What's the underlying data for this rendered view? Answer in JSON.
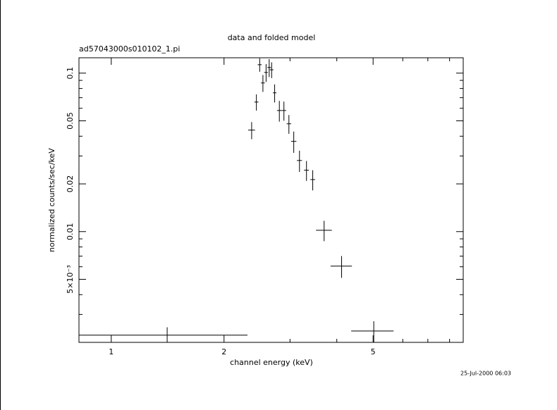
{
  "chart_data": {
    "type": "errorbar",
    "title": "data and folded model",
    "subtitle": "ad57043000s010102_1.pi",
    "x_label": "channel energy (keV)",
    "y_label": "normalized counts/sec/keV",
    "timestamp": "25-Jul-2000 06:03",
    "x_log": true,
    "y_log": true,
    "color": "#000000",
    "xlim": [
      0.82,
      8.7
    ],
    "ylim": [
      0.002,
      0.125
    ],
    "xticks": [
      1,
      2,
      5
    ],
    "xminorticks": [
      3,
      4,
      6,
      7,
      8
    ],
    "yticks": [
      {
        "value": 0.005,
        "label": "5×10⁻³"
      },
      0.01,
      0.02,
      0.05,
      0.1
    ],
    "yminorticks": [
      0.003,
      0.004,
      0.006,
      0.007,
      0.008,
      0.009,
      0.03,
      0.04,
      0.06,
      0.07,
      0.08,
      0.09
    ],
    "x": [
      1.41,
      2.37,
      2.44,
      2.49,
      2.54,
      2.59,
      2.64,
      2.68,
      2.73,
      2.81,
      2.89,
      2.98,
      3.07,
      3.18,
      3.32,
      3.45,
      3.7,
      4.12,
      5.02
    ],
    "xerr": [
      0.9,
      0.05,
      0.03,
      0.03,
      0.03,
      0.03,
      0.03,
      0.03,
      0.03,
      0.04,
      0.04,
      0.04,
      0.05,
      0.05,
      0.05,
      0.05,
      0.18,
      0.27,
      0.65
    ],
    "y": [
      0.00222,
      0.0437,
      0.0657,
      0.113,
      0.0867,
      0.101,
      0.1085,
      0.105,
      0.0751,
      0.0581,
      0.0581,
      0.0479,
      0.0371,
      0.0281,
      0.0244,
      0.0213,
      0.0102,
      0.00606,
      0.00236
    ],
    "yerr": [
      0.00027,
      0.0054,
      0.0077,
      0.011,
      0.0106,
      0.013,
      0.014,
      0.012,
      0.0098,
      0.0087,
      0.008,
      0.0065,
      0.0057,
      0.0043,
      0.0035,
      0.0031,
      0.0015,
      0.00095,
      0.00036
    ]
  }
}
